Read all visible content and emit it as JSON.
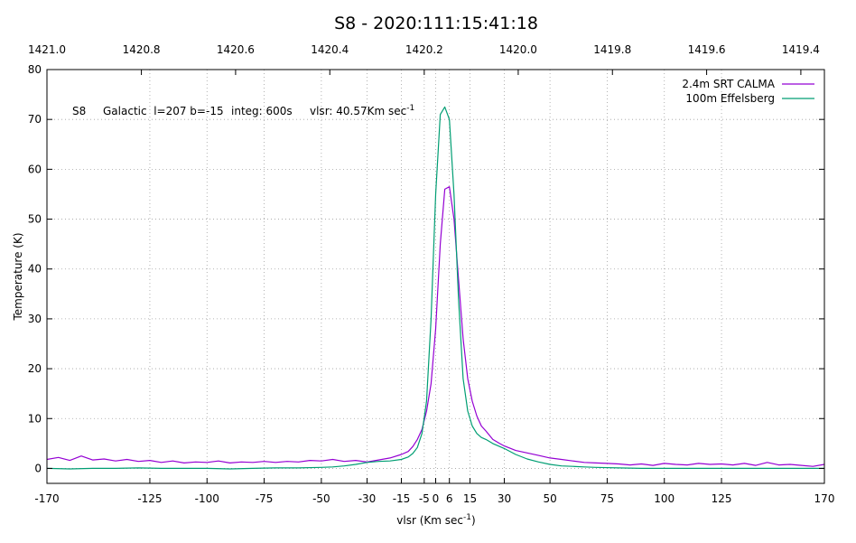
{
  "chart_data": {
    "type": "line",
    "title": "S8 - 2020:111:15:41:18",
    "xlabel": "vlsr (Km sec",
    "xlabel_sup": "-1",
    "xlabel_end": ")",
    "ylabel": "Temperature (K)",
    "xlim": [
      -170,
      170
    ],
    "ylim": [
      -3,
      80
    ],
    "grid": true,
    "legend_position": "top-right",
    "x_ticks": [
      -170,
      -125,
      -100,
      -75,
      -50,
      -30,
      -15,
      -5,
      0,
      6,
      15,
      30,
      50,
      75,
      100,
      125,
      170
    ],
    "x_tick_labels": [
      "-170",
      "-125",
      "-100",
      "-75",
      "-50",
      "-30",
      "-15",
      "-5",
      "0",
      "6",
      "15",
      "30",
      "50",
      "75",
      "100",
      "125",
      "170"
    ],
    "y_ticks": [
      0,
      10,
      20,
      30,
      40,
      50,
      60,
      70,
      80
    ],
    "y_tick_labels": [
      "0",
      "10",
      "20",
      "30",
      "40",
      "50",
      "60",
      "70",
      "80"
    ],
    "x2_ticks": [
      -170,
      -128.7,
      -87.5,
      -46.3,
      -5.0,
      36.1,
      77.3,
      118.5,
      159.7
    ],
    "x2_tick_labels": [
      "1421.0",
      "1420.8",
      "1420.6",
      "1420.4",
      "1420.2",
      "1420.0",
      "1419.8",
      "1419.6",
      "1419.4"
    ],
    "annotation": {
      "source": "S8",
      "coords": "Galactic  l=207 b=-15",
      "integ": "integ: 600s",
      "vlsr": "vlsr: 40.57Km sec",
      "vlsr_sup": "-1"
    },
    "series": [
      {
        "name": "2.4m SRT CALMA",
        "color": "#9400d3",
        "x": [
          -170,
          -165,
          -160,
          -155,
          -150,
          -145,
          -140,
          -135,
          -130,
          -125,
          -120,
          -115,
          -110,
          -105,
          -100,
          -95,
          -90,
          -85,
          -80,
          -75,
          -70,
          -65,
          -60,
          -55,
          -50,
          -45,
          -40,
          -35,
          -30,
          -25,
          -20,
          -15,
          -12,
          -10,
          -8,
          -6,
          -4,
          -2,
          0,
          2,
          4,
          6,
          8,
          10,
          12,
          14,
          16,
          18,
          20,
          22,
          25,
          28,
          30,
          35,
          40,
          45,
          50,
          55,
          60,
          65,
          70,
          75,
          80,
          85,
          90,
          95,
          100,
          105,
          110,
          115,
          120,
          125,
          130,
          135,
          140,
          145,
          150,
          155,
          160,
          165,
          170
        ],
        "y": [
          1.8,
          2.2,
          1.6,
          2.5,
          1.7,
          1.9,
          1.5,
          1.8,
          1.4,
          1.6,
          1.2,
          1.5,
          1.1,
          1.3,
          1.2,
          1.5,
          1.1,
          1.3,
          1.2,
          1.4,
          1.2,
          1.4,
          1.3,
          1.6,
          1.5,
          1.8,
          1.4,
          1.6,
          1.3,
          1.7,
          2.1,
          2.8,
          3.4,
          4.4,
          5.8,
          7.8,
          11.5,
          17.0,
          28.0,
          45.0,
          56.0,
          56.5,
          50.0,
          38.0,
          26.0,
          18.0,
          13.5,
          10.5,
          8.5,
          7.5,
          5.8,
          5.0,
          4.5,
          3.6,
          3.1,
          2.6,
          2.1,
          1.8,
          1.5,
          1.2,
          1.1,
          1.0,
          0.9,
          0.7,
          0.9,
          0.6,
          1.0,
          0.8,
          0.7,
          1.0,
          0.8,
          0.9,
          0.7,
          1.0,
          0.6,
          1.2,
          0.7,
          0.8,
          0.6,
          0.4,
          0.8
        ]
      },
      {
        "name": "100m Effelsberg",
        "color": "#009e73",
        "x": [
          -170,
          -160,
          -150,
          -140,
          -130,
          -120,
          -110,
          -100,
          -90,
          -80,
          -70,
          -60,
          -50,
          -45,
          -40,
          -35,
          -30,
          -25,
          -20,
          -15,
          -12,
          -10,
          -8,
          -6,
          -4,
          -2,
          0,
          2,
          4,
          6,
          8,
          10,
          12,
          14,
          16,
          18,
          20,
          22,
          25,
          30,
          35,
          40,
          45,
          50,
          55,
          60,
          65,
          70,
          80,
          90,
          100,
          110,
          120,
          130,
          140,
          150,
          160,
          170
        ],
        "y": [
          0.0,
          -0.1,
          0.0,
          0.0,
          0.1,
          0.0,
          0.0,
          0.0,
          -0.1,
          0.0,
          0.1,
          0.1,
          0.2,
          0.3,
          0.5,
          0.8,
          1.2,
          1.4,
          1.5,
          1.8,
          2.3,
          3.0,
          4.2,
          7.0,
          13.5,
          30.0,
          55.0,
          71.0,
          72.5,
          70.0,
          55.0,
          34.0,
          18.0,
          11.5,
          8.5,
          7.0,
          6.2,
          5.8,
          5.0,
          4.0,
          2.8,
          1.9,
          1.3,
          0.8,
          0.5,
          0.4,
          0.3,
          0.2,
          0.1,
          0.0,
          0.0,
          0.0,
          0.0,
          0.0,
          0.0,
          0.0,
          0.0,
          0.0
        ]
      }
    ]
  }
}
